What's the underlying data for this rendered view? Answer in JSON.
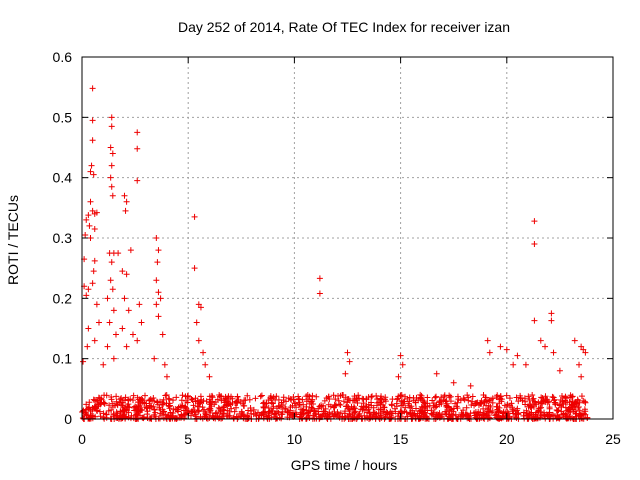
{
  "chart_data": {
    "type": "scatter",
    "title": "Day 252 of 2014, Rate Of TEC Index for receiver izan",
    "xlabel": "GPS time / hours",
    "ylabel": "ROTI / TECUs",
    "xlim": [
      0,
      25
    ],
    "ylim": [
      0,
      0.6
    ],
    "xticks": [
      "0",
      "5",
      "10",
      "15",
      "20",
      "25"
    ],
    "yticks": [
      "0",
      "0.1",
      "0.2",
      "0.3",
      "0.4",
      "0.5",
      "0.6"
    ],
    "grid": true,
    "marker": "plus",
    "series_color": "#ee0000",
    "series": [
      {
        "name": "ROTI",
        "points": [
          [
            0.5,
            0.548
          ],
          [
            0.5,
            0.495
          ],
          [
            0.5,
            0.462
          ],
          [
            0.45,
            0.42
          ],
          [
            0.4,
            0.41
          ],
          [
            0.55,
            0.405
          ],
          [
            0.4,
            0.36
          ],
          [
            0.5,
            0.345
          ],
          [
            0.6,
            0.34
          ],
          [
            0.3,
            0.338
          ],
          [
            0.2,
            0.33
          ],
          [
            0.7,
            0.342
          ],
          [
            0.35,
            0.32
          ],
          [
            0.6,
            0.315
          ],
          [
            0.15,
            0.305
          ],
          [
            0.4,
            0.3
          ],
          [
            0.1,
            0.265
          ],
          [
            0.6,
            0.262
          ],
          [
            0.55,
            0.245
          ],
          [
            0.1,
            0.22
          ],
          [
            0.3,
            0.215
          ],
          [
            0.5,
            0.225
          ],
          [
            0.2,
            0.205
          ],
          [
            0.7,
            0.19
          ],
          [
            0.8,
            0.16
          ],
          [
            0.3,
            0.15
          ],
          [
            0.05,
            0.095
          ],
          [
            0.25,
            0.12
          ],
          [
            0.6,
            0.13
          ],
          [
            1.4,
            0.5
          ],
          [
            1.4,
            0.485
          ],
          [
            1.35,
            0.45
          ],
          [
            1.45,
            0.44
          ],
          [
            1.4,
            0.42
          ],
          [
            1.35,
            0.4
          ],
          [
            1.4,
            0.385
          ],
          [
            1.45,
            0.37
          ],
          [
            1.5,
            0.275
          ],
          [
            1.3,
            0.275
          ],
          [
            1.7,
            0.275
          ],
          [
            1.4,
            0.26
          ],
          [
            1.35,
            0.23
          ],
          [
            1.45,
            0.215
          ],
          [
            1.2,
            0.2
          ],
          [
            1.5,
            0.18
          ],
          [
            1.3,
            0.16
          ],
          [
            1.6,
            0.14
          ],
          [
            1.2,
            0.12
          ],
          [
            1.5,
            0.1
          ],
          [
            1.0,
            0.09
          ],
          [
            2.0,
            0.37
          ],
          [
            2.1,
            0.36
          ],
          [
            2.05,
            0.345
          ],
          [
            1.9,
            0.245
          ],
          [
            2.1,
            0.24
          ],
          [
            2.3,
            0.28
          ],
          [
            2.0,
            0.2
          ],
          [
            2.2,
            0.18
          ],
          [
            1.9,
            0.15
          ],
          [
            2.4,
            0.14
          ],
          [
            2.1,
            0.12
          ],
          [
            2.6,
            0.475
          ],
          [
            2.6,
            0.448
          ],
          [
            2.6,
            0.395
          ],
          [
            2.7,
            0.19
          ],
          [
            2.8,
            0.16
          ],
          [
            2.6,
            0.13
          ],
          [
            3.5,
            0.3
          ],
          [
            3.6,
            0.28
          ],
          [
            3.55,
            0.26
          ],
          [
            3.5,
            0.23
          ],
          [
            3.6,
            0.21
          ],
          [
            3.7,
            0.2
          ],
          [
            3.5,
            0.19
          ],
          [
            3.6,
            0.17
          ],
          [
            3.8,
            0.14
          ],
          [
            3.4,
            0.1
          ],
          [
            3.9,
            0.09
          ],
          [
            4.0,
            0.07
          ],
          [
            5.3,
            0.335
          ],
          [
            5.3,
            0.25
          ],
          [
            5.5,
            0.19
          ],
          [
            5.6,
            0.185
          ],
          [
            5.4,
            0.16
          ],
          [
            5.5,
            0.13
          ],
          [
            5.7,
            0.11
          ],
          [
            5.8,
            0.09
          ],
          [
            6.0,
            0.07
          ],
          [
            11.2,
            0.233
          ],
          [
            11.2,
            0.208
          ],
          [
            12.5,
            0.11
          ],
          [
            12.6,
            0.095
          ],
          [
            12.4,
            0.075
          ],
          [
            15.0,
            0.105
          ],
          [
            15.1,
            0.09
          ],
          [
            14.9,
            0.07
          ],
          [
            16.7,
            0.075
          ],
          [
            17.5,
            0.06
          ],
          [
            18.3,
            0.055
          ],
          [
            19.1,
            0.13
          ],
          [
            19.2,
            0.11
          ],
          [
            19.7,
            0.12
          ],
          [
            20.0,
            0.115
          ],
          [
            20.5,
            0.105
          ],
          [
            20.3,
            0.09
          ],
          [
            20.9,
            0.09
          ],
          [
            21.3,
            0.328
          ],
          [
            21.3,
            0.29
          ],
          [
            21.3,
            0.163
          ],
          [
            21.6,
            0.13
          ],
          [
            21.8,
            0.12
          ],
          [
            22.1,
            0.175
          ],
          [
            22.1,
            0.163
          ],
          [
            22.2,
            0.11
          ],
          [
            22.5,
            0.08
          ],
          [
            23.2,
            0.13
          ],
          [
            23.5,
            0.12
          ],
          [
            23.6,
            0.115
          ],
          [
            23.7,
            0.11
          ],
          [
            23.4,
            0.09
          ],
          [
            23.5,
            0.07
          ],
          [
            23.2,
            0.02
          ],
          [
            23.6,
            0.03
          ]
        ],
        "background_level": {
          "description": "dense band of points across the full day",
          "x_range": [
            0,
            23.8
          ],
          "y_typical_max": 0.04,
          "y_min": 0.0
        }
      }
    ]
  }
}
